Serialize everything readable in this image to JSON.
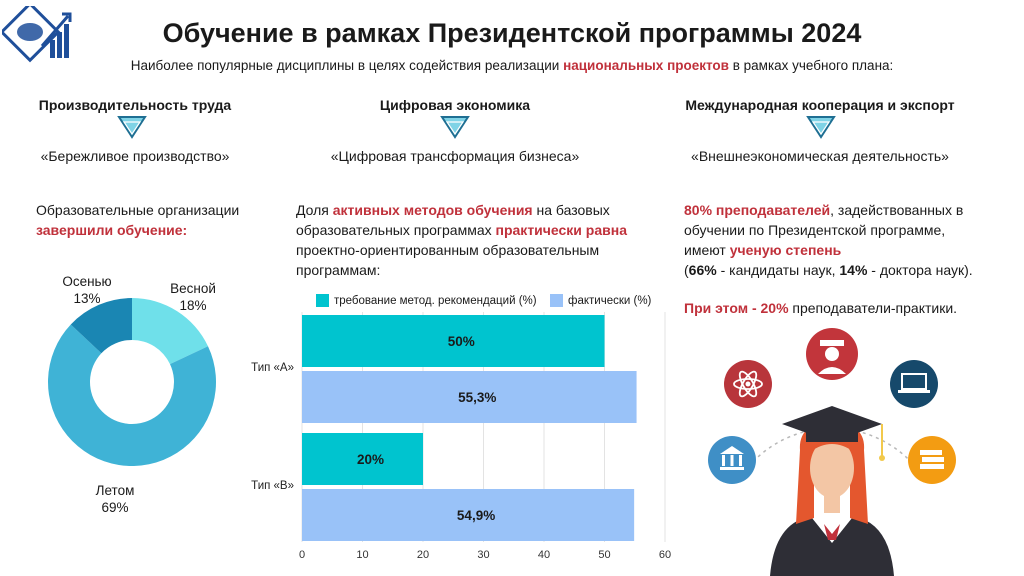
{
  "header": {
    "title": "Обучение в рамках Президентской программы 2024",
    "subtitle_pre": "Наиболее популярные дисциплины в целях содействия реализации ",
    "subtitle_highlight": "национальных проектов",
    "subtitle_post": " в рамках учебного плана:"
  },
  "columns": [
    {
      "heading": "Производительность труда",
      "topic": "«Бережливое производство»"
    },
    {
      "heading": "Цифровая экономика",
      "topic": "«Цифровая трансформация бизнеса»"
    },
    {
      "heading": "Международная кооперация и экспорт",
      "topic": "«Внешнеэкономическая деятельность»"
    }
  ],
  "left": {
    "text_line1": "Образовательные организации",
    "text_highlight": "завершили обучение:"
  },
  "middle": {
    "p1": "Доля ",
    "p1_hl": "активных методов обучения",
    "p2": " на базовых образовательных программах ",
    "p2_hl": "практически равна",
    "p3": " проектно-ориентированным образовательным программам:"
  },
  "right": {
    "hl1": "80% преподавателей",
    "t1": ", задействованных в обучении по Президентской программе, имеют ",
    "hl2": "ученую степень",
    "t2_open": "(",
    "b1": "66%",
    "t3": " - кандидаты наук, ",
    "b2": "14%",
    "t4": " - доктора наук).",
    "hl3": "При этом - 20%",
    "t5": " преподаватели-практики."
  },
  "chart_data": [
    {
      "type": "pie",
      "variant": "donut",
      "categories": [
        "Весной",
        "Летом",
        "Осенью"
      ],
      "values": [
        18,
        69,
        13
      ],
      "labels": [
        "18%",
        "69%",
        "13%"
      ],
      "colors": [
        "#6fe0ea",
        "#3fb3d6",
        "#1a86b3"
      ]
    },
    {
      "type": "bar",
      "orientation": "horizontal",
      "categories": [
        "Тип «А»",
        "Тип «В»"
      ],
      "series": [
        {
          "name": "требование метод. рекомендаций (%)",
          "values": [
            50,
            20
          ],
          "labels": [
            "50%",
            "20%"
          ],
          "color": "#00c4cf"
        },
        {
          "name": "фактически (%)",
          "values": [
            55.3,
            54.9
          ],
          "labels": [
            "55,3%",
            "54,9%"
          ],
          "color": "#99c2f8"
        }
      ],
      "xlim": [
        0,
        60
      ],
      "xticks": [
        0,
        10,
        20,
        30,
        40,
        50,
        60
      ],
      "legend_position": "top",
      "grid": true
    }
  ],
  "colors": {
    "accent_red": "#c0313b",
    "arrow_fill": "#7fd3e6",
    "arrow_stroke": "#1f6f93"
  }
}
